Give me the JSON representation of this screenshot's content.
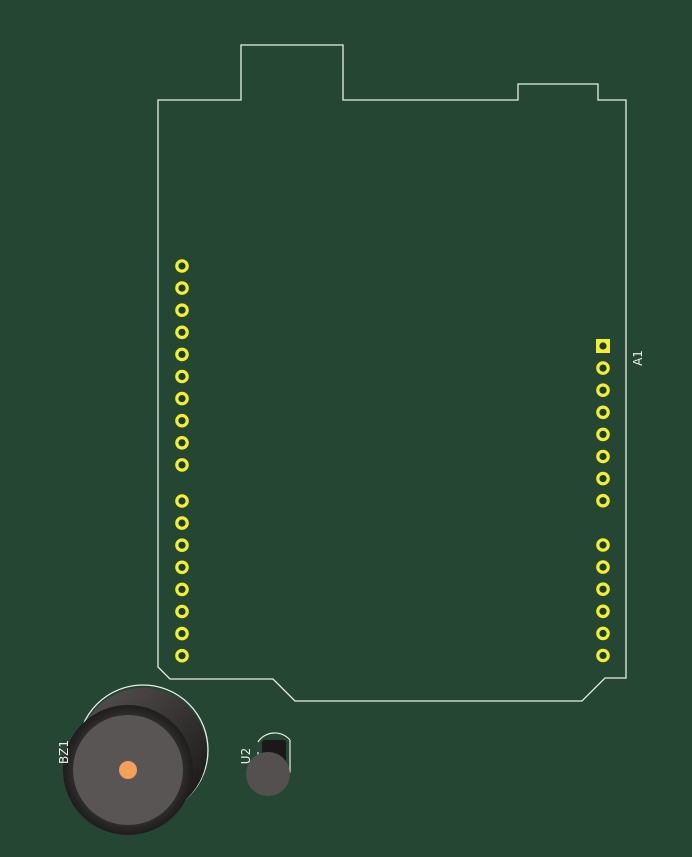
{
  "board": {
    "background_color": "#254632",
    "silkscreen_color": "#e8eee8",
    "pad_color": "#f2ef2e",
    "pad_hole_color": "#1d3a2a"
  },
  "components": {
    "arduino": {
      "ref": "A1",
      "left_header_pins": 18,
      "right_header_pins": 14
    },
    "buzzer": {
      "ref": "BZ1",
      "body_color": "#5a5555",
      "pin_color": "#f2a05a"
    },
    "sensor": {
      "ref": "U2",
      "package": "TO-92",
      "body_color": "#555050"
    }
  }
}
